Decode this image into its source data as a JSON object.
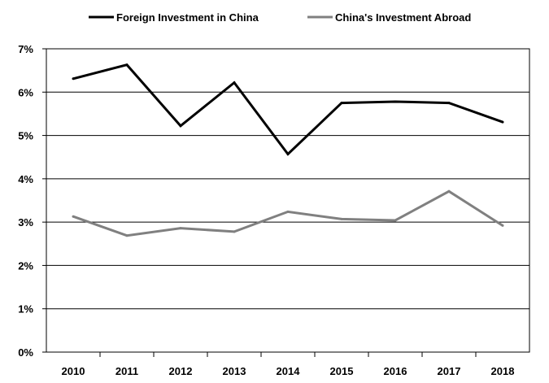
{
  "chart_data": {
    "type": "line",
    "title": "",
    "xlabel": "",
    "ylabel": "",
    "x": [
      2010,
      2011,
      2012,
      2013,
      2014,
      2015,
      2016,
      2017,
      2018
    ],
    "x_tick_labels": [
      "2010",
      "2011",
      "2012",
      "2013",
      "2014",
      "2015",
      "2016",
      "2017",
      "2018"
    ],
    "ylim": [
      0,
      7
    ],
    "y_ticks": [
      0,
      1,
      2,
      3,
      4,
      5,
      6,
      7
    ],
    "y_tick_labels": [
      "0%",
      "1%",
      "2%",
      "3%",
      "4%",
      "5%",
      "6%",
      "7%"
    ],
    "y_unit": "%",
    "grid": "horizontal",
    "legend_position": "top",
    "series": [
      {
        "name": "Foreign Investment in China",
        "color": "#000000",
        "values": [
          6.31,
          6.63,
          5.22,
          6.22,
          4.57,
          5.75,
          5.78,
          5.75,
          5.31
        ]
      },
      {
        "name": "China's Investment Abroad",
        "color": "#808080",
        "values": [
          3.13,
          2.69,
          2.86,
          2.78,
          3.24,
          3.07,
          3.04,
          3.71,
          2.92
        ]
      }
    ]
  }
}
